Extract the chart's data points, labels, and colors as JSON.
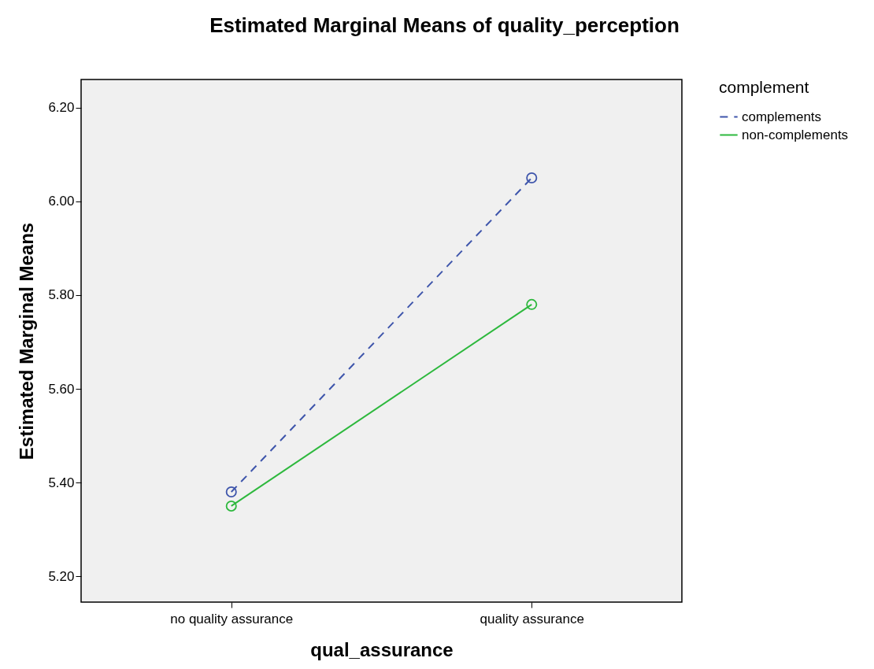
{
  "chart_data": {
    "type": "line",
    "title": "Estimated Marginal Means of quality_perception",
    "xlabel": "qual_assurance",
    "ylabel": "Estimated Marginal Means",
    "legend_title": "complement",
    "categories": [
      "no quality assurance",
      "quality assurance"
    ],
    "series": [
      {
        "name": "complements",
        "color": "#3e55ab",
        "values": [
          5.38,
          6.05
        ],
        "line_style": "dashed"
      },
      {
        "name": "non-complements",
        "color": "#2db83d",
        "values": [
          5.35,
          5.78
        ],
        "line_style": "solid"
      }
    ],
    "ylim": [
      5.145,
      6.26
    ],
    "yticks": [
      {
        "value": 5.2,
        "label": "5.20"
      },
      {
        "value": 5.4,
        "label": "5.40"
      },
      {
        "value": 5.6,
        "label": "5.60"
      },
      {
        "value": 5.8,
        "label": "5.80"
      },
      {
        "value": 6.0,
        "label": "6.00"
      },
      {
        "value": 6.2,
        "label": "6.20"
      }
    ],
    "grid": false,
    "legend": "top right",
    "marker": "circle"
  }
}
